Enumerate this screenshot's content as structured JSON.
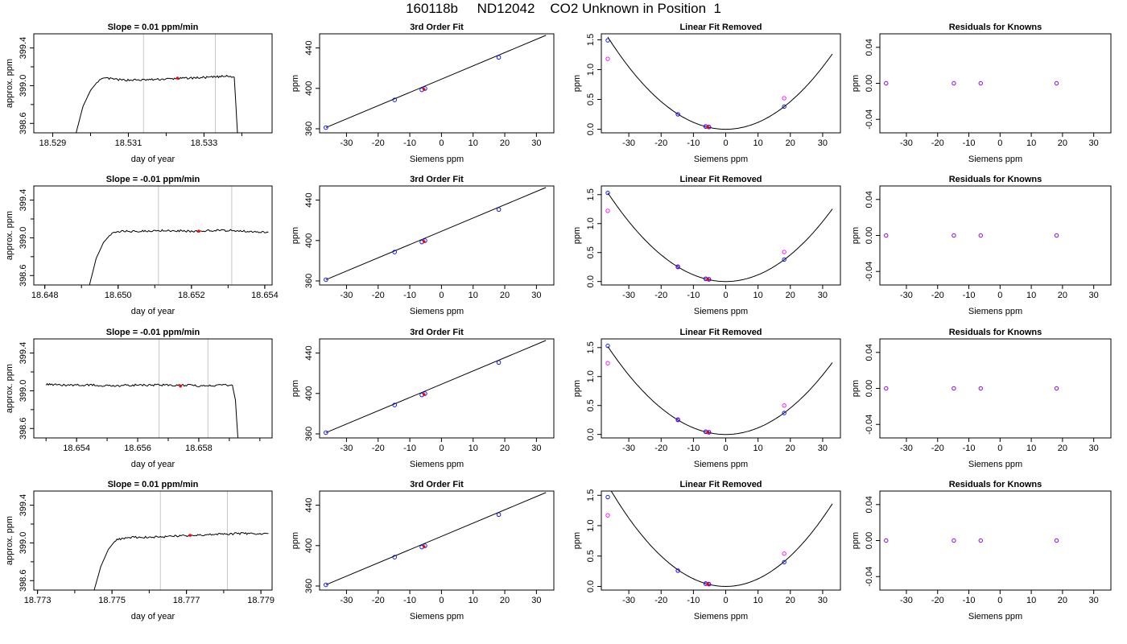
{
  "figure_title": "160118b     ND12042    CO2 Unknown in Position  1",
  "colors": {
    "trace": "#000000",
    "vline": "#c8c8c8",
    "marker_red": "#ff0000",
    "point_blue": "#0000ff",
    "point_magenta": "#ff00ff",
    "point_purple": "#8800ff"
  },
  "chart_data": [
    {
      "type": "line",
      "row": 1,
      "title": "Slope =  0.01  ppm/min",
      "xlabel": "day of year",
      "ylabel": "approx. ppm",
      "xlim": [
        18.5285,
        18.5348
      ],
      "ylim": [
        398.5,
        399.55
      ],
      "xticks": [
        18.529,
        18.531,
        18.533
      ],
      "xtick_labels": [
        "18.529",
        "18.531",
        "18.533"
      ],
      "yticks": [
        398.6,
        399.0,
        399.4
      ],
      "ytick_labels": [
        "398.6",
        "399.0",
        "399.4"
      ],
      "vlines": [
        18.5314,
        18.5333
      ],
      "trace": [
        [
          18.5296,
          398.47
        ],
        [
          18.5298,
          398.78
        ],
        [
          18.53,
          398.95
        ],
        [
          18.5302,
          399.05
        ],
        [
          18.5304,
          399.08
        ],
        [
          18.5308,
          399.06
        ],
        [
          18.5314,
          399.06
        ],
        [
          18.532,
          399.07
        ],
        [
          18.5326,
          399.08
        ],
        [
          18.5332,
          399.09
        ],
        [
          18.5336,
          399.1
        ],
        [
          18.5338,
          399.09
        ],
        [
          18.5339,
          398.4
        ]
      ],
      "marker": [
        18.5323,
        399.08
      ]
    },
    {
      "type": "scatter",
      "row": 1,
      "title": "3rd Order Fit",
      "xlabel": "Siemens ppm",
      "ylabel": "ppm",
      "xlim": [
        -38.5,
        35.5
      ],
      "ylim": [
        356,
        454
      ],
      "xticks": [
        -30,
        -20,
        -10,
        0,
        10,
        20,
        30
      ],
      "xtick_labels": [
        "-30",
        "-20",
        "-10",
        "0",
        "10",
        "20",
        "30"
      ],
      "yticks": [
        360,
        400,
        440
      ],
      "ytick_labels": [
        "360",
        "400",
        "440"
      ],
      "fit_line": [
        [
          -36.5,
          361.2
        ],
        [
          33,
          452.5
        ]
      ],
      "points": [
        [
          -36.5,
          361.2
        ],
        [
          -14.8,
          388.6
        ],
        [
          -6.2,
          398.5
        ],
        [
          -5.2,
          399.8
        ],
        [
          18.1,
          430.7
        ]
      ],
      "marker": [
        -5.5,
        399.0
      ]
    },
    {
      "type": "scatter",
      "row": 1,
      "title": "Linear Fit Removed",
      "xlabel": "Siemens ppm",
      "ylabel": "ppm",
      "xlim": [
        -38.5,
        35.5
      ],
      "ylim": [
        -0.06,
        1.6
      ],
      "xticks": [
        -30,
        -20,
        -10,
        0,
        10,
        20,
        30
      ],
      "xtick_labels": [
        "-30",
        "-20",
        "-10",
        "0",
        "10",
        "20",
        "30"
      ],
      "yticks": [
        0.0,
        0.5,
        1.0,
        1.5
      ],
      "ytick_labels": [
        "0.0",
        "0.5",
        "1.0",
        "1.5"
      ],
      "curve_coeff": 0.00116,
      "points_blue": [
        [
          -36.5,
          1.49
        ],
        [
          -14.8,
          0.25
        ],
        [
          -6.2,
          0.044
        ],
        [
          -5.2,
          0.036
        ],
        [
          18.1,
          0.38
        ]
      ],
      "points_magenta": [
        [
          -36.5,
          1.18
        ],
        [
          -14.8,
          0.25
        ],
        [
          -6.2,
          0.05
        ],
        [
          -5.2,
          0.04
        ],
        [
          18.1,
          0.52
        ]
      ],
      "marker": [
        -5.5,
        0.035
      ]
    },
    {
      "type": "scatter",
      "row": 1,
      "title": "Residuals for Knowns",
      "xlabel": "Siemens ppm",
      "ylabel": "ppm",
      "xlim": [
        -38.5,
        35.5
      ],
      "ylim": [
        -0.055,
        0.055
      ],
      "xticks": [
        -30,
        -20,
        -10,
        0,
        10,
        20,
        30
      ],
      "xtick_labels": [
        "-30",
        "-20",
        "-10",
        "0",
        "10",
        "20",
        "30"
      ],
      "yticks": [
        -0.04,
        0.0,
        0.04
      ],
      "ytick_labels": [
        "-0.04",
        "0.00",
        "0.04"
      ],
      "points": [
        [
          -36.5,
          0.0
        ],
        [
          -14.8,
          0.0
        ],
        [
          -6.2,
          0.0
        ],
        [
          18.1,
          0.0
        ]
      ]
    },
    {
      "type": "line",
      "row": 2,
      "title": "Slope =  -0.01  ppm/min",
      "xlabel": "day of year",
      "ylabel": "approx. ppm",
      "xlim": [
        18.6477,
        18.6542
      ],
      "ylim": [
        398.5,
        399.55
      ],
      "xticks": [
        18.648,
        18.65,
        18.652,
        18.654
      ],
      "xtick_labels": [
        "18.648",
        "18.650",
        "18.652",
        "18.654"
      ],
      "yticks": [
        398.6,
        399.0,
        399.4
      ],
      "ytick_labels": [
        "398.6",
        "399.0",
        "399.4"
      ],
      "vlines": [
        18.6511,
        18.6531
      ],
      "trace": [
        [
          18.6492,
          398.47
        ],
        [
          18.6494,
          398.78
        ],
        [
          18.6496,
          398.95
        ],
        [
          18.6498,
          399.04
        ],
        [
          18.6501,
          399.07
        ],
        [
          18.6506,
          399.07
        ],
        [
          18.6512,
          399.08
        ],
        [
          18.652,
          399.07
        ],
        [
          18.6528,
          399.08
        ],
        [
          18.6535,
          399.07
        ],
        [
          18.6541,
          399.06
        ]
      ],
      "marker": [
        18.6522,
        399.07
      ]
    },
    {
      "type": "scatter",
      "row": 2,
      "title": "3rd Order Fit",
      "xlabel": "Siemens ppm",
      "ylabel": "ppm",
      "xlim": [
        -38.5,
        35.5
      ],
      "ylim": [
        356,
        454
      ],
      "xticks": [
        -30,
        -20,
        -10,
        0,
        10,
        20,
        30
      ],
      "xtick_labels": [
        "-30",
        "-20",
        "-10",
        "0",
        "10",
        "20",
        "30"
      ],
      "yticks": [
        360,
        400,
        440
      ],
      "ytick_labels": [
        "360",
        "400",
        "440"
      ],
      "fit_line": [
        [
          -36.5,
          361.2
        ],
        [
          33,
          452.5
        ]
      ],
      "points": [
        [
          -36.5,
          361.2
        ],
        [
          -14.8,
          388.6
        ],
        [
          -6.2,
          398.5
        ],
        [
          -5.2,
          399.8
        ],
        [
          18.1,
          430.7
        ]
      ],
      "marker": [
        -5.5,
        399.0
      ]
    },
    {
      "type": "scatter",
      "row": 2,
      "title": "Linear Fit Removed",
      "xlabel": "Siemens ppm",
      "ylabel": "ppm",
      "xlim": [
        -38.5,
        35.5
      ],
      "ylim": [
        -0.06,
        1.65
      ],
      "xticks": [
        -30,
        -20,
        -10,
        0,
        10,
        20,
        30
      ],
      "xtick_labels": [
        "-30",
        "-20",
        "-10",
        "0",
        "10",
        "20",
        "30"
      ],
      "yticks": [
        0.0,
        0.5,
        1.0,
        1.5
      ],
      "ytick_labels": [
        "0.0",
        "0.5",
        "1.0",
        "1.5"
      ],
      "curve_coeff": 0.00115,
      "points_blue": [
        [
          -36.5,
          1.53
        ],
        [
          -14.8,
          0.25
        ],
        [
          -6.2,
          0.045
        ],
        [
          -5.2,
          0.036
        ],
        [
          18.1,
          0.38
        ]
      ],
      "points_magenta": [
        [
          -36.5,
          1.22
        ],
        [
          -14.8,
          0.26
        ],
        [
          -6.2,
          0.05
        ],
        [
          -5.2,
          0.04
        ],
        [
          18.1,
          0.51
        ]
      ],
      "marker": [
        -5.5,
        0.035
      ]
    },
    {
      "type": "scatter",
      "row": 2,
      "title": "Residuals for Knowns",
      "xlabel": "Siemens ppm",
      "ylabel": "ppm",
      "xlim": [
        -38.5,
        35.5
      ],
      "ylim": [
        -0.055,
        0.055
      ],
      "xticks": [
        -30,
        -20,
        -10,
        0,
        10,
        20,
        30
      ],
      "xtick_labels": [
        "-30",
        "-20",
        "-10",
        "0",
        "10",
        "20",
        "30"
      ],
      "yticks": [
        -0.04,
        0.0,
        0.04
      ],
      "ytick_labels": [
        "-0.04",
        "0.00",
        "0.04"
      ],
      "points": [
        [
          -36.5,
          0.0
        ],
        [
          -14.8,
          0.0
        ],
        [
          -6.2,
          0.0
        ],
        [
          18.1,
          0.0
        ]
      ]
    },
    {
      "type": "line",
      "row": 3,
      "title": "Slope =  -0.01  ppm/min",
      "xlabel": "day of year",
      "ylabel": "approx. ppm",
      "xlim": [
        18.6526,
        18.6604
      ],
      "ylim": [
        398.5,
        399.55
      ],
      "xticks": [
        18.654,
        18.656,
        18.658
      ],
      "xtick_labels": [
        "18.654",
        "18.656",
        "18.658"
      ],
      "vlines": [
        18.6567,
        18.6583
      ],
      "yticks": [
        398.6,
        399.0,
        399.4
      ],
      "ytick_labels": [
        "398.6",
        "399.0",
        "399.4"
      ],
      "trace": [
        [
          18.653,
          399.07
        ],
        [
          18.6535,
          399.06
        ],
        [
          18.654,
          399.06
        ],
        [
          18.6546,
          399.06
        ],
        [
          18.6552,
          399.05
        ],
        [
          18.6558,
          399.06
        ],
        [
          18.6564,
          399.06
        ],
        [
          18.657,
          399.06
        ],
        [
          18.6576,
          399.06
        ],
        [
          18.6582,
          399.05
        ],
        [
          18.6588,
          399.06
        ],
        [
          18.6591,
          399.06
        ],
        [
          18.6592,
          398.9
        ],
        [
          18.6593,
          398.4
        ]
      ],
      "marker": [
        18.6574,
        399.05
      ]
    },
    {
      "type": "scatter",
      "row": 3,
      "title": "3rd Order Fit",
      "xlabel": "Siemens ppm",
      "ylabel": "ppm",
      "xlim": [
        -38.5,
        35.5
      ],
      "ylim": [
        356,
        454
      ],
      "xticks": [
        -30,
        -20,
        -10,
        0,
        10,
        20,
        30
      ],
      "xtick_labels": [
        "-30",
        "-20",
        "-10",
        "0",
        "10",
        "20",
        "30"
      ],
      "yticks": [
        360,
        400,
        440
      ],
      "ytick_labels": [
        "360",
        "400",
        "440"
      ],
      "fit_line": [
        [
          -36.5,
          361.2
        ],
        [
          33,
          452.5
        ]
      ],
      "points": [
        [
          -36.5,
          361.2
        ],
        [
          -14.8,
          388.6
        ],
        [
          -6.2,
          398.5
        ],
        [
          -5.2,
          399.8
        ],
        [
          18.1,
          430.7
        ]
      ],
      "marker": [
        -5.5,
        399.0
      ]
    },
    {
      "type": "scatter",
      "row": 3,
      "title": "Linear Fit Removed",
      "xlabel": "Siemens ppm",
      "ylabel": "ppm",
      "xlim": [
        -38.5,
        35.5
      ],
      "ylim": [
        -0.06,
        1.65
      ],
      "xticks": [
        -30,
        -20,
        -10,
        0,
        10,
        20,
        30
      ],
      "xtick_labels": [
        "-30",
        "-20",
        "-10",
        "0",
        "10",
        "20",
        "30"
      ],
      "yticks": [
        0.0,
        0.5,
        1.0,
        1.5
      ],
      "ytick_labels": [
        "0.0",
        "0.5",
        "1.0",
        "1.5"
      ],
      "curve_coeff": 0.00114,
      "points_blue": [
        [
          -36.5,
          1.53
        ],
        [
          -14.8,
          0.25
        ],
        [
          -6.2,
          0.045
        ],
        [
          -5.2,
          0.036
        ],
        [
          18.1,
          0.37
        ]
      ],
      "points_magenta": [
        [
          -36.5,
          1.23
        ],
        [
          -14.8,
          0.26
        ],
        [
          -6.2,
          0.05
        ],
        [
          -5.2,
          0.04
        ],
        [
          18.1,
          0.5
        ]
      ],
      "marker": [
        -5.5,
        0.035
      ]
    },
    {
      "type": "scatter",
      "row": 3,
      "title": "Residuals for Knowns",
      "xlabel": "Siemens ppm",
      "ylabel": "ppm",
      "xlim": [
        -38.5,
        35.5
      ],
      "ylim": [
        -0.055,
        0.055
      ],
      "xticks": [
        -30,
        -20,
        -10,
        0,
        10,
        20,
        30
      ],
      "xtick_labels": [
        "-30",
        "-20",
        "-10",
        "0",
        "10",
        "20",
        "30"
      ],
      "yticks": [
        -0.04,
        0.0,
        0.04
      ],
      "ytick_labels": [
        "-0.04",
        "0.00",
        "0.04"
      ],
      "points": [
        [
          -36.5,
          0.0
        ],
        [
          -14.8,
          0.0
        ],
        [
          -6.2,
          0.0
        ],
        [
          18.1,
          0.0
        ]
      ]
    },
    {
      "type": "line",
      "row": 4,
      "title": "Slope =  0.01  ppm/min",
      "xlabel": "day of year",
      "ylabel": "approx. ppm",
      "xlim": [
        18.7729,
        18.7793
      ],
      "ylim": [
        398.5,
        399.55
      ],
      "xticks": [
        18.773,
        18.775,
        18.777,
        18.779
      ],
      "xtick_labels": [
        "18.773",
        "18.775",
        "18.777",
        "18.779"
      ],
      "yticks": [
        398.6,
        399.0,
        399.4
      ],
      "ytick_labels": [
        "398.6",
        "399.0",
        "399.4"
      ],
      "vlines": [
        18.7763,
        18.7781
      ],
      "trace": [
        [
          18.7745,
          398.47
        ],
        [
          18.7747,
          398.75
        ],
        [
          18.7749,
          398.93
        ],
        [
          18.7751,
          399.03
        ],
        [
          18.7754,
          399.06
        ],
        [
          18.776,
          399.06
        ],
        [
          18.7766,
          399.07
        ],
        [
          18.7772,
          399.08
        ],
        [
          18.7778,
          399.09
        ],
        [
          18.7784,
          399.1
        ],
        [
          18.7792,
          399.1
        ]
      ],
      "marker": [
        18.7771,
        399.08
      ]
    },
    {
      "type": "scatter",
      "row": 4,
      "title": "3rd Order Fit",
      "xlabel": "Siemens ppm",
      "ylabel": "ppm",
      "xlim": [
        -38.5,
        35.5
      ],
      "ylim": [
        356,
        454
      ],
      "xticks": [
        -30,
        -20,
        -10,
        0,
        10,
        20,
        30
      ],
      "xtick_labels": [
        "-30",
        "-20",
        "-10",
        "0",
        "10",
        "20",
        "30"
      ],
      "yticks": [
        360,
        400,
        440
      ],
      "ytick_labels": [
        "360",
        "400",
        "440"
      ],
      "fit_line": [
        [
          -36.5,
          361.2
        ],
        [
          33,
          452.5
        ]
      ],
      "points": [
        [
          -36.5,
          361.2
        ],
        [
          -14.8,
          388.6
        ],
        [
          -6.2,
          398.5
        ],
        [
          -5.2,
          399.8
        ],
        [
          18.1,
          430.7
        ]
      ],
      "marker": [
        -5.5,
        399.0
      ]
    },
    {
      "type": "scatter",
      "row": 4,
      "title": "Linear Fit Removed",
      "xlabel": "Siemens ppm",
      "ylabel": "ppm",
      "xlim": [
        -38.5,
        35.5
      ],
      "ylim": [
        -0.06,
        1.57
      ],
      "xticks": [
        -30,
        -20,
        -10,
        0,
        10,
        20,
        30
      ],
      "xtick_labels": [
        "-30",
        "-20",
        "-10",
        "0",
        "10",
        "20",
        "30"
      ],
      "yticks": [
        0.0,
        0.5,
        1.0,
        1.5
      ],
      "ytick_labels": [
        "0.0",
        "0.5",
        "1.0",
        "1.5"
      ],
      "curve_coeff": 0.00125,
      "points_blue": [
        [
          -36.5,
          1.47
        ],
        [
          -14.8,
          0.26
        ],
        [
          -6.2,
          0.045
        ],
        [
          -5.2,
          0.036
        ],
        [
          18.1,
          0.4
        ]
      ],
      "points_magenta": [
        [
          -36.5,
          1.17
        ],
        [
          -14.8,
          0.26
        ],
        [
          -6.2,
          0.05
        ],
        [
          -5.2,
          0.04
        ],
        [
          18.1,
          0.54
        ]
      ],
      "marker": [
        -5.5,
        0.035
      ]
    },
    {
      "type": "scatter",
      "row": 4,
      "title": "Residuals for Knowns",
      "xlabel": "Siemens ppm",
      "ylabel": "ppm",
      "xlim": [
        -38.5,
        35.5
      ],
      "ylim": [
        -0.055,
        0.055
      ],
      "xticks": [
        -30,
        -20,
        -10,
        0,
        10,
        20,
        30
      ],
      "xtick_labels": [
        "-30",
        "-20",
        "-10",
        "0",
        "10",
        "20",
        "30"
      ],
      "yticks": [
        -0.04,
        0.0,
        0.04
      ],
      "ytick_labels": [
        "-0.04",
        "0.00",
        "0.04"
      ],
      "points": [
        [
          -36.5,
          0.0
        ],
        [
          -14.8,
          0.0
        ],
        [
          -6.2,
          0.0
        ],
        [
          18.1,
          0.0
        ]
      ]
    }
  ]
}
